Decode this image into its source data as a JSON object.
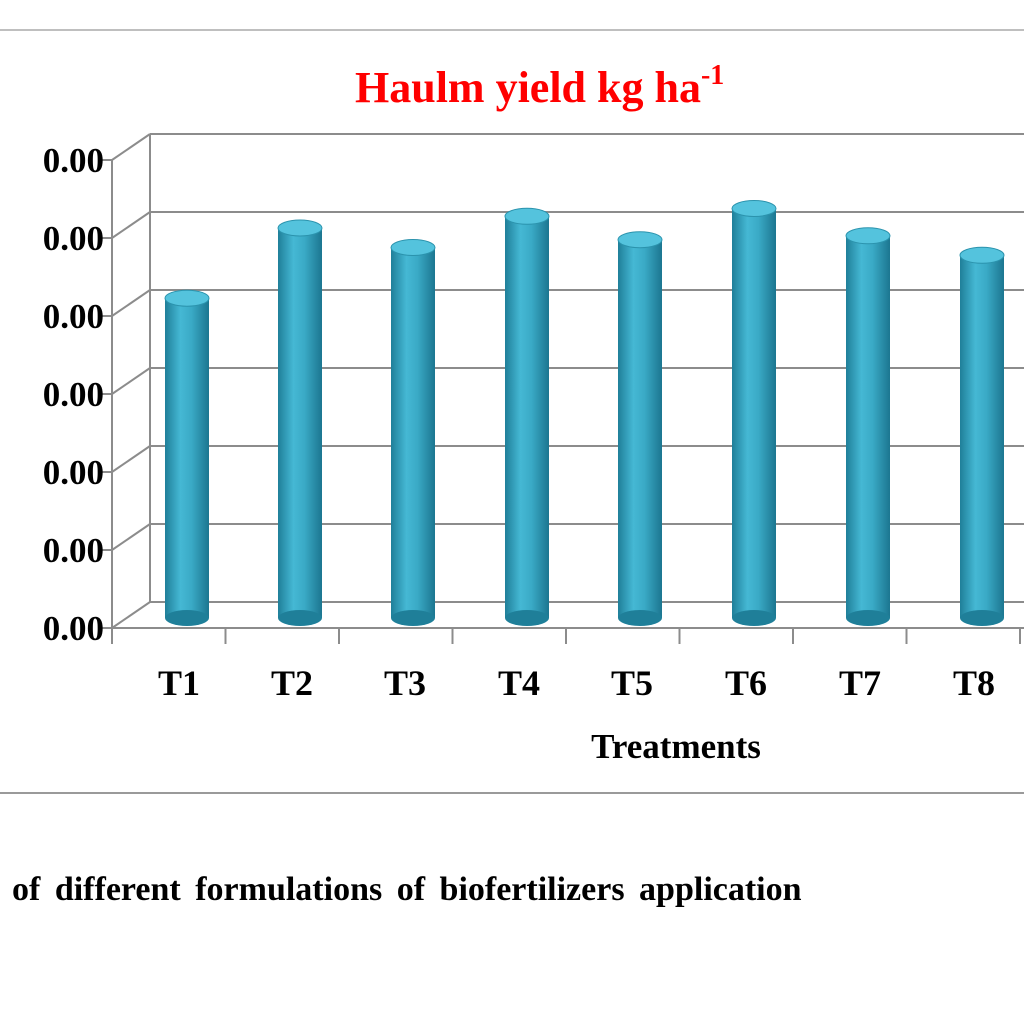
{
  "chart_data": {
    "type": "bar",
    "title": "Haulm yield kg ha",
    "title_superscript": "-1",
    "xlabel": "Treatments",
    "ylabel": "",
    "categories": [
      "T1",
      "T2",
      "T3",
      "T4",
      "T5",
      "T6",
      "T7",
      "T8"
    ],
    "y_tick_labels": [
      "0.00",
      "0.00",
      "0.00",
      "0.00",
      "0.00",
      "0.00",
      "0.00"
    ],
    "values": [
      4.1,
      5.0,
      4.75,
      5.15,
      4.85,
      5.25,
      4.9,
      4.65
    ],
    "ylim": [
      0,
      6
    ],
    "grid": true,
    "bar_color": "#3aaac6",
    "title_color": "#ff0000"
  },
  "caption": "of different formulations of biofertilizers application"
}
